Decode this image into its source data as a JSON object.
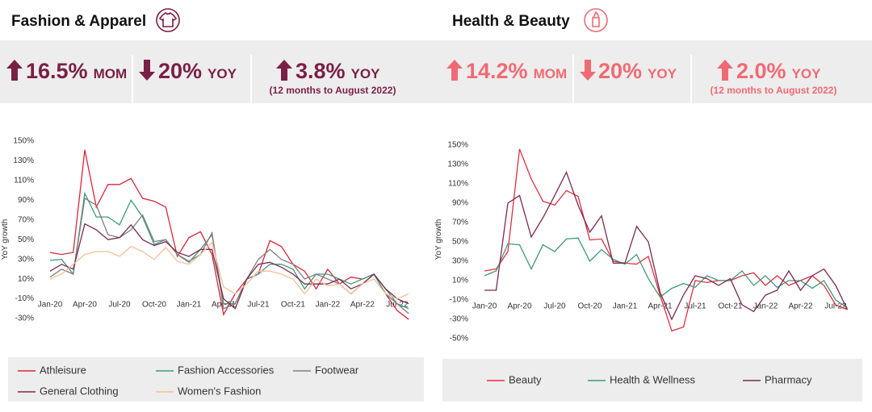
{
  "panels": [
    {
      "title": "Fashion & Apparel",
      "color": "#7a1f45",
      "kpis": [
        {
          "direction": "up",
          "value": "16.5%",
          "unit": "MOM"
        },
        {
          "direction": "down",
          "value": "20%",
          "unit": "YOY"
        },
        {
          "direction": "up",
          "value": "3.8%",
          "unit": "YOY",
          "note": "(12 months to August 2022)"
        }
      ]
    },
    {
      "title": "Health & Beauty",
      "color": "#f06a73",
      "kpis": [
        {
          "direction": "up",
          "value": "14.2%",
          "unit": "MOM"
        },
        {
          "direction": "down",
          "value": "20%",
          "unit": "YOY"
        },
        {
          "direction": "up",
          "value": "2.0%",
          "unit": "YOY",
          "note": "(12 months to August 2022)"
        }
      ]
    }
  ],
  "chart_data": [
    {
      "type": "line",
      "y_label": "YoY growth",
      "categories": [
        "Jan-20",
        null,
        null,
        "Apr-20",
        null,
        null,
        "Jul-20",
        null,
        null,
        "Oct-20",
        null,
        null,
        "Jan-21",
        null,
        null,
        "Apr-21",
        null,
        null,
        "Jul-21",
        null,
        null,
        "Oct-21",
        null,
        null,
        "Jan-22",
        null,
        null,
        "Apr-22",
        null,
        null,
        "Jul-22",
        null
      ],
      "ylim": [
        -30,
        150
      ],
      "yticks": [
        {
          "value": 150,
          "label": "150%"
        },
        {
          "value": 130,
          "label": "130%"
        },
        {
          "value": 110,
          "label": "110%"
        },
        {
          "value": 90,
          "label": "90%"
        },
        {
          "value": 70,
          "label": "70%"
        },
        {
          "value": 50,
          "label": "50%"
        },
        {
          "value": 30,
          "label": "30%"
        },
        {
          "value": 10,
          "label": "10%"
        },
        {
          "value": -10,
          "label": "-10%"
        },
        {
          "value": -30,
          "label": "-30%"
        }
      ],
      "grid": false,
      "series": [
        {
          "name": "Athleisure",
          "color": "#d9263a",
          "values": [
            37,
            35,
            37,
            141,
            83,
            106,
            106,
            112,
            92,
            89,
            83,
            33,
            52,
            58,
            35,
            -26,
            -5,
            10,
            15,
            49,
            43,
            25,
            18,
            0,
            20,
            5,
            12,
            10,
            15,
            -5,
            -22,
            -31
          ]
        },
        {
          "name": "Fashion Accessories",
          "color": "#3f9a7a",
          "values": [
            29,
            30,
            15,
            97,
            73,
            73,
            65,
            90,
            73,
            45,
            50,
            35,
            27,
            40,
            55,
            -15,
            -15,
            10,
            15,
            25,
            25,
            20,
            0,
            15,
            15,
            10,
            5,
            10,
            15,
            -5,
            -15,
            -20
          ]
        },
        {
          "name": "Footwear",
          "color": "#7f7f7f",
          "values": [
            12,
            20,
            15,
            92,
            85,
            55,
            52,
            60,
            75,
            48,
            50,
            35,
            28,
            35,
            57,
            -20,
            -15,
            10,
            30,
            40,
            30,
            25,
            10,
            15,
            10,
            5,
            -5,
            5,
            15,
            0,
            -15,
            -25
          ]
        },
        {
          "name": "General Clothing",
          "color": "#7b2a4d",
          "values": [
            18,
            25,
            20,
            66,
            60,
            50,
            52,
            65,
            50,
            44,
            48,
            37,
            33,
            40,
            40,
            -10,
            -20,
            10,
            25,
            27,
            22,
            15,
            5,
            5,
            5,
            10,
            0,
            5,
            15,
            0,
            -10,
            -15
          ]
        },
        {
          "name": "Women's Fashion",
          "color": "#f6bf9a",
          "values": [
            10,
            15,
            25,
            35,
            38,
            38,
            33,
            43,
            38,
            30,
            42,
            28,
            25,
            35,
            47,
            2,
            -5,
            5,
            18,
            18,
            15,
            10,
            -5,
            10,
            3,
            5,
            -5,
            5,
            10,
            -5,
            -10,
            -5
          ]
        }
      ]
    },
    {
      "type": "line",
      "y_label": "YoY growth",
      "categories": [
        "Jan-20",
        null,
        null,
        "Apr-20",
        null,
        null,
        "Jul-20",
        null,
        null,
        "Oct-20",
        null,
        null,
        "Jan-21",
        null,
        null,
        "Apr-21",
        null,
        null,
        "Jul-21",
        null,
        null,
        "Oct-21",
        null,
        null,
        "Jan-22",
        null,
        null,
        "Apr-22",
        null,
        null,
        "Jul-22",
        null
      ],
      "ylim": [
        -50,
        150
      ],
      "yticks": [
        {
          "value": 150,
          "label": "150%"
        },
        {
          "value": 130,
          "label": "130%"
        },
        {
          "value": 110,
          "label": "110%"
        },
        {
          "value": 90,
          "label": "90%"
        },
        {
          "value": 70,
          "label": "70%"
        },
        {
          "value": 50,
          "label": "50%"
        },
        {
          "value": 30,
          "label": "30%"
        },
        {
          "value": 10,
          "label": "10%"
        },
        {
          "value": -10,
          "label": "-10%"
        },
        {
          "value": -30,
          "label": "-30%"
        },
        {
          "value": -50,
          "label": "-50%"
        }
      ],
      "grid": false,
      "series": [
        {
          "name": "Beauty",
          "color": "#e0303e",
          "values": [
            20,
            22,
            40,
            146,
            115,
            92,
            88,
            103,
            97,
            52,
            53,
            30,
            28,
            27,
            35,
            -5,
            -42,
            -38,
            10,
            8,
            10,
            10,
            15,
            18,
            5,
            15,
            5,
            10,
            15,
            5,
            -15,
            -20
          ]
        },
        {
          "name": "Health & Wellness",
          "color": "#3f9a7a",
          "values": [
            15,
            20,
            48,
            47,
            22,
            47,
            40,
            53,
            54,
            30,
            42,
            32,
            27,
            37,
            12,
            -7,
            2,
            7,
            3,
            15,
            10,
            10,
            20,
            5,
            15,
            3,
            10,
            10,
            2,
            10,
            -10,
            -18
          ]
        },
        {
          "name": "Pharmacy",
          "color": "#7b2a4d",
          "values": [
            0,
            0,
            90,
            98,
            55,
            75,
            98,
            122,
            88,
            60,
            77,
            28,
            28,
            66,
            50,
            -2,
            -30,
            -5,
            15,
            12,
            5,
            12,
            -15,
            -22,
            -5,
            0,
            20,
            0,
            15,
            22,
            5,
            -20
          ]
        }
      ]
    }
  ]
}
